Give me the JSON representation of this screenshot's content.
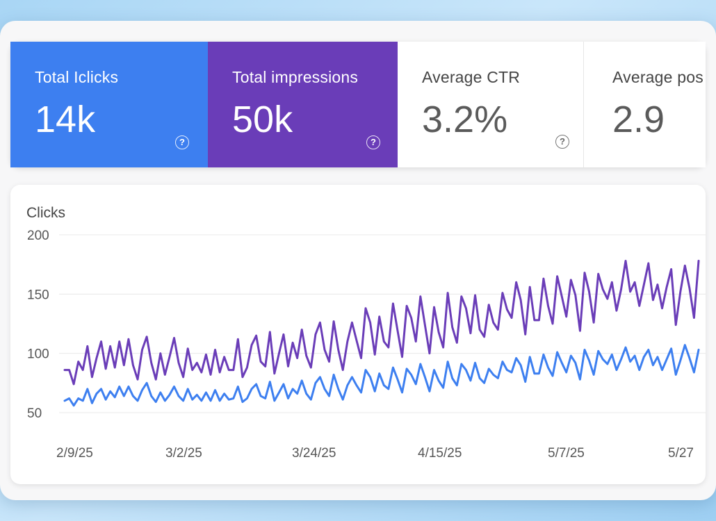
{
  "metrics": [
    {
      "label": "Total Iclicks",
      "value": "14k",
      "color": "#3d7ff0",
      "help_icon": "?"
    },
    {
      "label": "Total impressions",
      "value": "50k",
      "color": "#6a3db8",
      "help_icon": "?"
    },
    {
      "label": "Average CTR",
      "value": "3.2%",
      "help_icon": "?"
    },
    {
      "label": "Average pos",
      "value": "2.9"
    }
  ],
  "chart_data": {
    "type": "line",
    "ylabel": "Clicks",
    "ylim": [
      50,
      200
    ],
    "yticks": [
      "200",
      "150",
      "100",
      "50"
    ],
    "xticks": [
      "2/9/25",
      "3/2/25",
      "3/24/25",
      "4/15/25",
      "5/7/25",
      "5/27"
    ],
    "grid": true,
    "series": [
      {
        "color": "#6a3db8",
        "values": [
          86,
          86,
          74,
          93,
          86,
          106,
          80,
          96,
          110,
          87,
          106,
          88,
          110,
          90,
          112,
          90,
          78,
          103,
          114,
          92,
          78,
          100,
          82,
          97,
          113,
          92,
          80,
          104,
          86,
          92,
          84,
          99,
          82,
          103,
          84,
          97,
          86,
          86,
          112,
          80,
          88,
          107,
          115,
          93,
          89,
          118,
          83,
          100,
          116,
          89,
          109,
          96,
          120,
          98,
          88,
          116,
          126,
          103,
          93,
          127,
          103,
          86,
          110,
          126,
          111,
          96,
          138,
          126,
          99,
          131,
          110,
          105,
          142,
          119,
          97,
          140,
          130,
          110,
          148,
          124,
          100,
          139,
          118,
          105,
          151,
          122,
          109,
          148,
          138,
          117,
          149,
          120,
          114,
          141,
          126,
          120,
          151,
          137,
          130,
          160,
          145,
          116,
          156,
          128,
          128,
          163,
          140,
          125,
          165,
          148,
          131,
          162,
          149,
          119,
          168,
          152,
          126,
          167,
          154,
          146,
          160,
          136,
          154,
          178,
          152,
          160,
          140,
          158,
          176,
          145,
          158,
          138,
          156,
          171,
          124,
          152,
          174,
          155,
          130,
          178
        ]
      },
      {
        "color": "#3d7ff0",
        "values": [
          60,
          62,
          56,
          62,
          60,
          70,
          58,
          66,
          70,
          61,
          68,
          63,
          72,
          64,
          72,
          64,
          60,
          69,
          75,
          64,
          59,
          67,
          60,
          65,
          72,
          64,
          60,
          70,
          61,
          65,
          60,
          67,
          60,
          69,
          60,
          66,
          61,
          62,
          72,
          59,
          62,
          70,
          74,
          64,
          62,
          76,
          60,
          67,
          74,
          62,
          70,
          66,
          77,
          66,
          61,
          75,
          80,
          70,
          64,
          82,
          70,
          61,
          73,
          80,
          73,
          67,
          86,
          80,
          68,
          83,
          73,
          70,
          88,
          78,
          67,
          87,
          82,
          74,
          91,
          80,
          68,
          86,
          77,
          71,
          93,
          79,
          73,
          91,
          86,
          77,
          92,
          79,
          75,
          87,
          82,
          79,
          93,
          86,
          84,
          96,
          90,
          76,
          97,
          83,
          83,
          99,
          88,
          81,
          101,
          92,
          84,
          98,
          92,
          78,
          103,
          94,
          82,
          102,
          95,
          91,
          99,
          86,
          95,
          105,
          93,
          98,
          86,
          97,
          103,
          90,
          97,
          86,
          95,
          104,
          82,
          94,
          107,
          96,
          84,
          103
        ]
      }
    ]
  }
}
